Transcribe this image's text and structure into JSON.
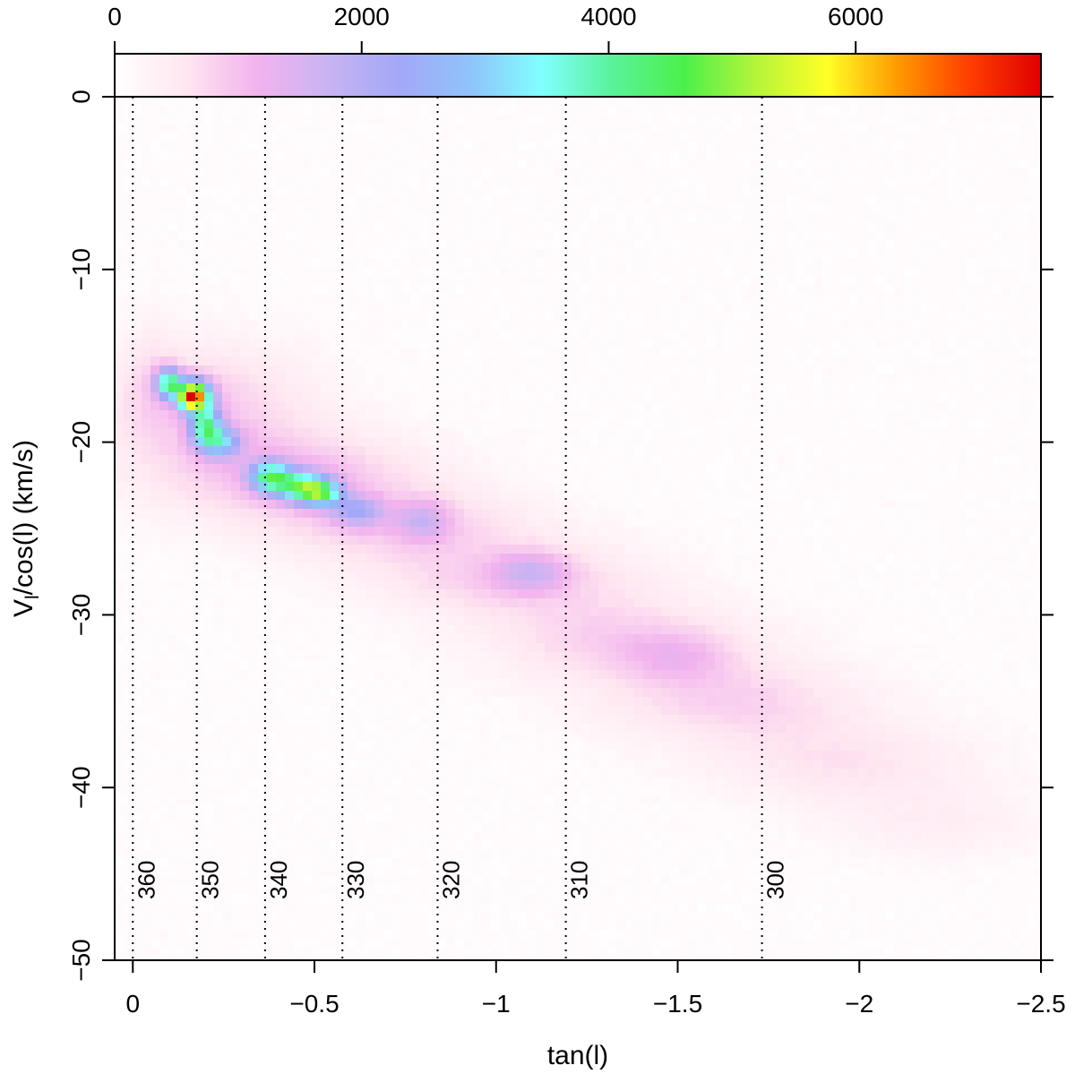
{
  "chart_data": {
    "type": "heatmap",
    "xlabel": "tan(l)",
    "ylabel_main": "V",
    "ylabel_sub": "l",
    "ylabel_rest": "/cos(l) (km/s)",
    "xlim": [
      0.05,
      -2.5
    ],
    "ylim": [
      -50,
      0
    ],
    "x_ticks": [
      0,
      -0.5,
      -1,
      -1.5,
      -2,
      -2.5
    ],
    "x_tick_labels": [
      "0",
      "−0.5",
      "−1",
      "−1.5",
      "−2",
      "−2.5"
    ],
    "y_ticks": [
      0,
      -10,
      -20,
      -30,
      -40,
      -50
    ],
    "y_tick_labels": [
      "0",
      "−10",
      "−20",
      "−30",
      "−40",
      "−50"
    ],
    "colorbar": {
      "range": [
        0,
        7500
      ],
      "ticks": [
        0,
        2000,
        4000,
        6000
      ],
      "tick_labels": [
        "0",
        "2000",
        "4000",
        "6000"
      ],
      "colors": [
        "#ffffff",
        "#ffe6f0",
        "#f2b3ee",
        "#c9b3f2",
        "#a3a8f7",
        "#8fc3fb",
        "#80ffff",
        "#59f299",
        "#4cf04a",
        "#b5f53a",
        "#ffff26",
        "#ff9900",
        "#ff3d00",
        "#e00000"
      ]
    },
    "longitude_lines": [
      {
        "label": "360",
        "tan_l": 0.0
      },
      {
        "label": "350",
        "tan_l": -0.176
      },
      {
        "label": "340",
        "tan_l": -0.364
      },
      {
        "label": "330",
        "tan_l": -0.577
      },
      {
        "label": "320",
        "tan_l": -0.839
      },
      {
        "label": "310",
        "tan_l": -1.192
      },
      {
        "label": "300",
        "tan_l": -1.732
      }
    ],
    "density_blobs": [
      {
        "x": -0.05,
        "y": -16.0,
        "sx": 0.05,
        "sy": 2.5,
        "w": 250
      },
      {
        "x": -0.2,
        "y": -18.0,
        "sx": 0.2,
        "sy": 2.5,
        "w": 800
      },
      {
        "x": -0.45,
        "y": -22.0,
        "sx": 0.25,
        "sy": 1.8,
        "w": 900
      },
      {
        "x": -0.75,
        "y": -25.0,
        "sx": 0.25,
        "sy": 1.5,
        "w": 700
      },
      {
        "x": -1.05,
        "y": -28.0,
        "sx": 0.25,
        "sy": 1.5,
        "w": 750
      },
      {
        "x": -1.35,
        "y": -31.5,
        "sx": 0.25,
        "sy": 1.6,
        "w": 750
      },
      {
        "x": -1.65,
        "y": -35.0,
        "sx": 0.25,
        "sy": 1.6,
        "w": 700
      },
      {
        "x": -1.95,
        "y": -38.5,
        "sx": 0.25,
        "sy": 1.6,
        "w": 500
      },
      {
        "x": -2.2,
        "y": -42.0,
        "sx": 0.2,
        "sy": 1.5,
        "w": 300
      },
      {
        "x": -0.1,
        "y": -16.6,
        "sx": 0.025,
        "sy": 0.6,
        "w": 3500
      },
      {
        "x": -0.17,
        "y": -17.3,
        "sx": 0.03,
        "sy": 0.6,
        "w": 5800
      },
      {
        "x": -0.15,
        "y": -17.6,
        "sx": 0.012,
        "sy": 0.3,
        "w": 2200
      },
      {
        "x": -0.2,
        "y": -19.0,
        "sx": 0.03,
        "sy": 0.8,
        "w": 3000
      },
      {
        "x": -0.24,
        "y": -20.0,
        "sx": 0.04,
        "sy": 0.6,
        "w": 2200
      },
      {
        "x": -0.38,
        "y": -22.0,
        "sx": 0.04,
        "sy": 0.6,
        "w": 3200
      },
      {
        "x": -0.47,
        "y": -22.6,
        "sx": 0.05,
        "sy": 0.6,
        "w": 3000
      },
      {
        "x": -0.52,
        "y": -23.0,
        "sx": 0.04,
        "sy": 0.5,
        "w": 2600
      },
      {
        "x": -0.62,
        "y": -24.0,
        "sx": 0.05,
        "sy": 0.6,
        "w": 1400
      },
      {
        "x": -0.8,
        "y": -24.5,
        "sx": 0.05,
        "sy": 0.8,
        "w": 900
      },
      {
        "x": -1.1,
        "y": -27.5,
        "sx": 0.07,
        "sy": 0.8,
        "w": 900
      },
      {
        "x": -1.5,
        "y": -32.5,
        "sx": 0.1,
        "sy": 1.0,
        "w": 500
      }
    ],
    "background_level": 130
  }
}
